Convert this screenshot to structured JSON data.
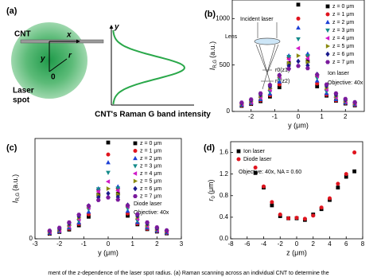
{
  "diagram": {
    "label": "(a)",
    "cnt": "CNT",
    "x_axis": "x",
    "y_axis": "y",
    "radius": "r",
    "origin": "0",
    "spot_line1": "Laser",
    "spot_line2": "spot",
    "profile_axis": "y",
    "profile_label": "CNT's Raman G band intensity"
  },
  "caption": "ment of the z-dependence of the laser spot radius. (a) Raman scanning across an individual CNT to determine the",
  "chart_data": [
    {
      "type": "scatter",
      "label": "(b)",
      "xlabel": "y (μm)",
      "ylabel": "I",
      "ylabel_sub": "R,G",
      "ylabel_unit": "(a.u.)",
      "xlim": [
        -2.8,
        2.8
      ],
      "ylim": [
        0,
        1200
      ],
      "xticks": [
        -2,
        -1,
        0,
        1,
        2
      ],
      "yticks": [
        0,
        500,
        1000
      ],
      "x": [
        -2.4,
        -2.0,
        -1.6,
        -1.2,
        -0.8,
        -0.4,
        0,
        0.4,
        0.8,
        1.2,
        1.6,
        2.0,
        2.4
      ],
      "series": [
        {
          "name": "z = 0 μm",
          "color": "#000000",
          "marker": "square",
          "values": [
            60,
            80,
            110,
            160,
            260,
            520,
            1150,
            540,
            270,
            170,
            115,
            85,
            65
          ]
        },
        {
          "name": "z = 1 μm",
          "color": "#e0141e",
          "marker": "circle",
          "values": [
            65,
            85,
            120,
            175,
            290,
            580,
            1000,
            600,
            300,
            180,
            120,
            90,
            70
          ]
        },
        {
          "name": "z = 2 μm",
          "color": "#1c3fd6",
          "marker": "tri-up",
          "values": [
            70,
            90,
            130,
            190,
            320,
            600,
            900,
            620,
            330,
            195,
            130,
            95,
            75
          ]
        },
        {
          "name": "z = 3 μm",
          "color": "#138a8a",
          "marker": "tri-down",
          "values": [
            75,
            95,
            140,
            210,
            350,
            590,
            780,
            600,
            360,
            215,
            140,
            100,
            80
          ]
        },
        {
          "name": "z = 4 μm",
          "color": "#d019c8",
          "marker": "tri-left",
          "values": [
            80,
            100,
            150,
            230,
            370,
            560,
            680,
            570,
            380,
            235,
            150,
            105,
            85
          ]
        },
        {
          "name": "z = 5 μm",
          "color": "#8a8a10",
          "marker": "tri-right",
          "values": [
            85,
            110,
            165,
            250,
            380,
            520,
            600,
            530,
            390,
            255,
            165,
            115,
            90
          ]
        },
        {
          "name": "z = 6 μm",
          "color": "#1a1a8c",
          "marker": "diamond",
          "values": [
            90,
            120,
            180,
            270,
            390,
            490,
            540,
            495,
            400,
            275,
            180,
            125,
            95
          ]
        },
        {
          "name": "z = 7 μm",
          "color": "#7a1a9c",
          "marker": "hexagon",
          "values": [
            95,
            130,
            195,
            285,
            390,
            460,
            490,
            465,
            395,
            290,
            195,
            135,
            100
          ]
        }
      ],
      "annotations": [
        "Ion laser",
        "Objective: 40x",
        "Incident laser",
        "Lens",
        "r0(z1)",
        "r0(z2)"
      ]
    },
    {
      "type": "scatter",
      "label": "(c)",
      "xlabel": "y (μm)",
      "ylabel": "I",
      "ylabel_sub": "R,G",
      "ylabel_unit": "(a.u.)",
      "xlim": [
        -3,
        3
      ],
      "ylim": [
        0,
        500
      ],
      "xticks": [
        -3,
        -2,
        -1,
        0,
        1,
        2,
        3
      ],
      "yticks": [
        0
      ],
      "x": [
        -2.4,
        -2.0,
        -1.6,
        -1.2,
        -0.8,
        -0.4,
        0,
        0.4,
        0.8,
        1.2,
        1.6,
        2.0,
        2.4
      ],
      "series": [
        {
          "name": "z = 0 μm",
          "color": "#000000",
          "marker": "square",
          "values": [
            25,
            34,
            46,
            67,
            110,
            220,
            480,
            225,
            115,
            72,
            48,
            36,
            27
          ]
        },
        {
          "name": "z = 1 μm",
          "color": "#e0141e",
          "marker": "circle",
          "values": [
            27,
            36,
            50,
            74,
            122,
            245,
            420,
            250,
            126,
            76,
            50,
            38,
            29
          ]
        },
        {
          "name": "z = 2 μm",
          "color": "#1c3fd6",
          "marker": "tri-up",
          "values": [
            29,
            38,
            55,
            80,
            134,
            250,
            380,
            260,
            138,
            82,
            55,
            40,
            31
          ]
        },
        {
          "name": "z = 3 μm",
          "color": "#138a8a",
          "marker": "tri-down",
          "values": [
            31,
            40,
            59,
            88,
            147,
            248,
            330,
            252,
            151,
            90,
            59,
            42,
            34
          ]
        },
        {
          "name": "z = 4 μm",
          "color": "#d019c8",
          "marker": "tri-left",
          "values": [
            34,
            42,
            63,
            97,
            155,
            235,
            285,
            240,
            160,
            99,
            63,
            44,
            36
          ]
        },
        {
          "name": "z = 5 μm",
          "color": "#8a8a10",
          "marker": "tri-right",
          "values": [
            36,
            46,
            69,
            105,
            160,
            218,
            250,
            222,
            164,
            107,
            69,
            48,
            38
          ]
        },
        {
          "name": "z = 6 μm",
          "color": "#1a1a8c",
          "marker": "diamond",
          "values": [
            38,
            50,
            76,
            113,
            164,
            206,
            226,
            208,
            168,
            115,
            76,
            52,
            40
          ]
        },
        {
          "name": "z = 7 μm",
          "color": "#7a1a9c",
          "marker": "hexagon",
          "values": [
            40,
            55,
            82,
            120,
            164,
            193,
            206,
            195,
            166,
            122,
            82,
            57,
            42
          ]
        }
      ],
      "annotations": [
        "Diode laser",
        "Objective: 40x"
      ]
    },
    {
      "type": "scatter",
      "label": "(d)",
      "xlabel": "z (μm)",
      "ylabel": "r",
      "ylabel_sub": "0",
      "ylabel_unit": "(μm)",
      "xlim": [
        -8,
        8
      ],
      "ylim": [
        0,
        1.8
      ],
      "xticks": [
        -8,
        -6,
        -4,
        -2,
        0,
        2,
        4,
        6,
        8
      ],
      "yticks": [
        {
          "value": 0,
          "label": "0.0"
        },
        0.4,
        0.8,
        1.2,
        1.6
      ],
      "x": [
        -5,
        -4,
        -3,
        -2,
        -1,
        0,
        1,
        2,
        3,
        4,
        5,
        6,
        7
      ],
      "series": [
        {
          "name": "Ion laser",
          "color": "#000000",
          "marker": "square",
          "values": [
            1.22,
            0.95,
            0.62,
            0.42,
            0.38,
            0.38,
            0.35,
            0.45,
            0.55,
            0.72,
            0.95,
            1.15,
            1.25
          ]
        },
        {
          "name": "Diode laser",
          "color": "#e0141e",
          "marker": "circle",
          "values": [
            1.32,
            0.97,
            0.68,
            0.45,
            0.38,
            0.39,
            0.37,
            0.43,
            0.58,
            0.75,
            1.02,
            1.2,
            1.6
          ]
        }
      ],
      "annotations": [
        "Objective: 40x, NA = 0.60"
      ]
    }
  ]
}
